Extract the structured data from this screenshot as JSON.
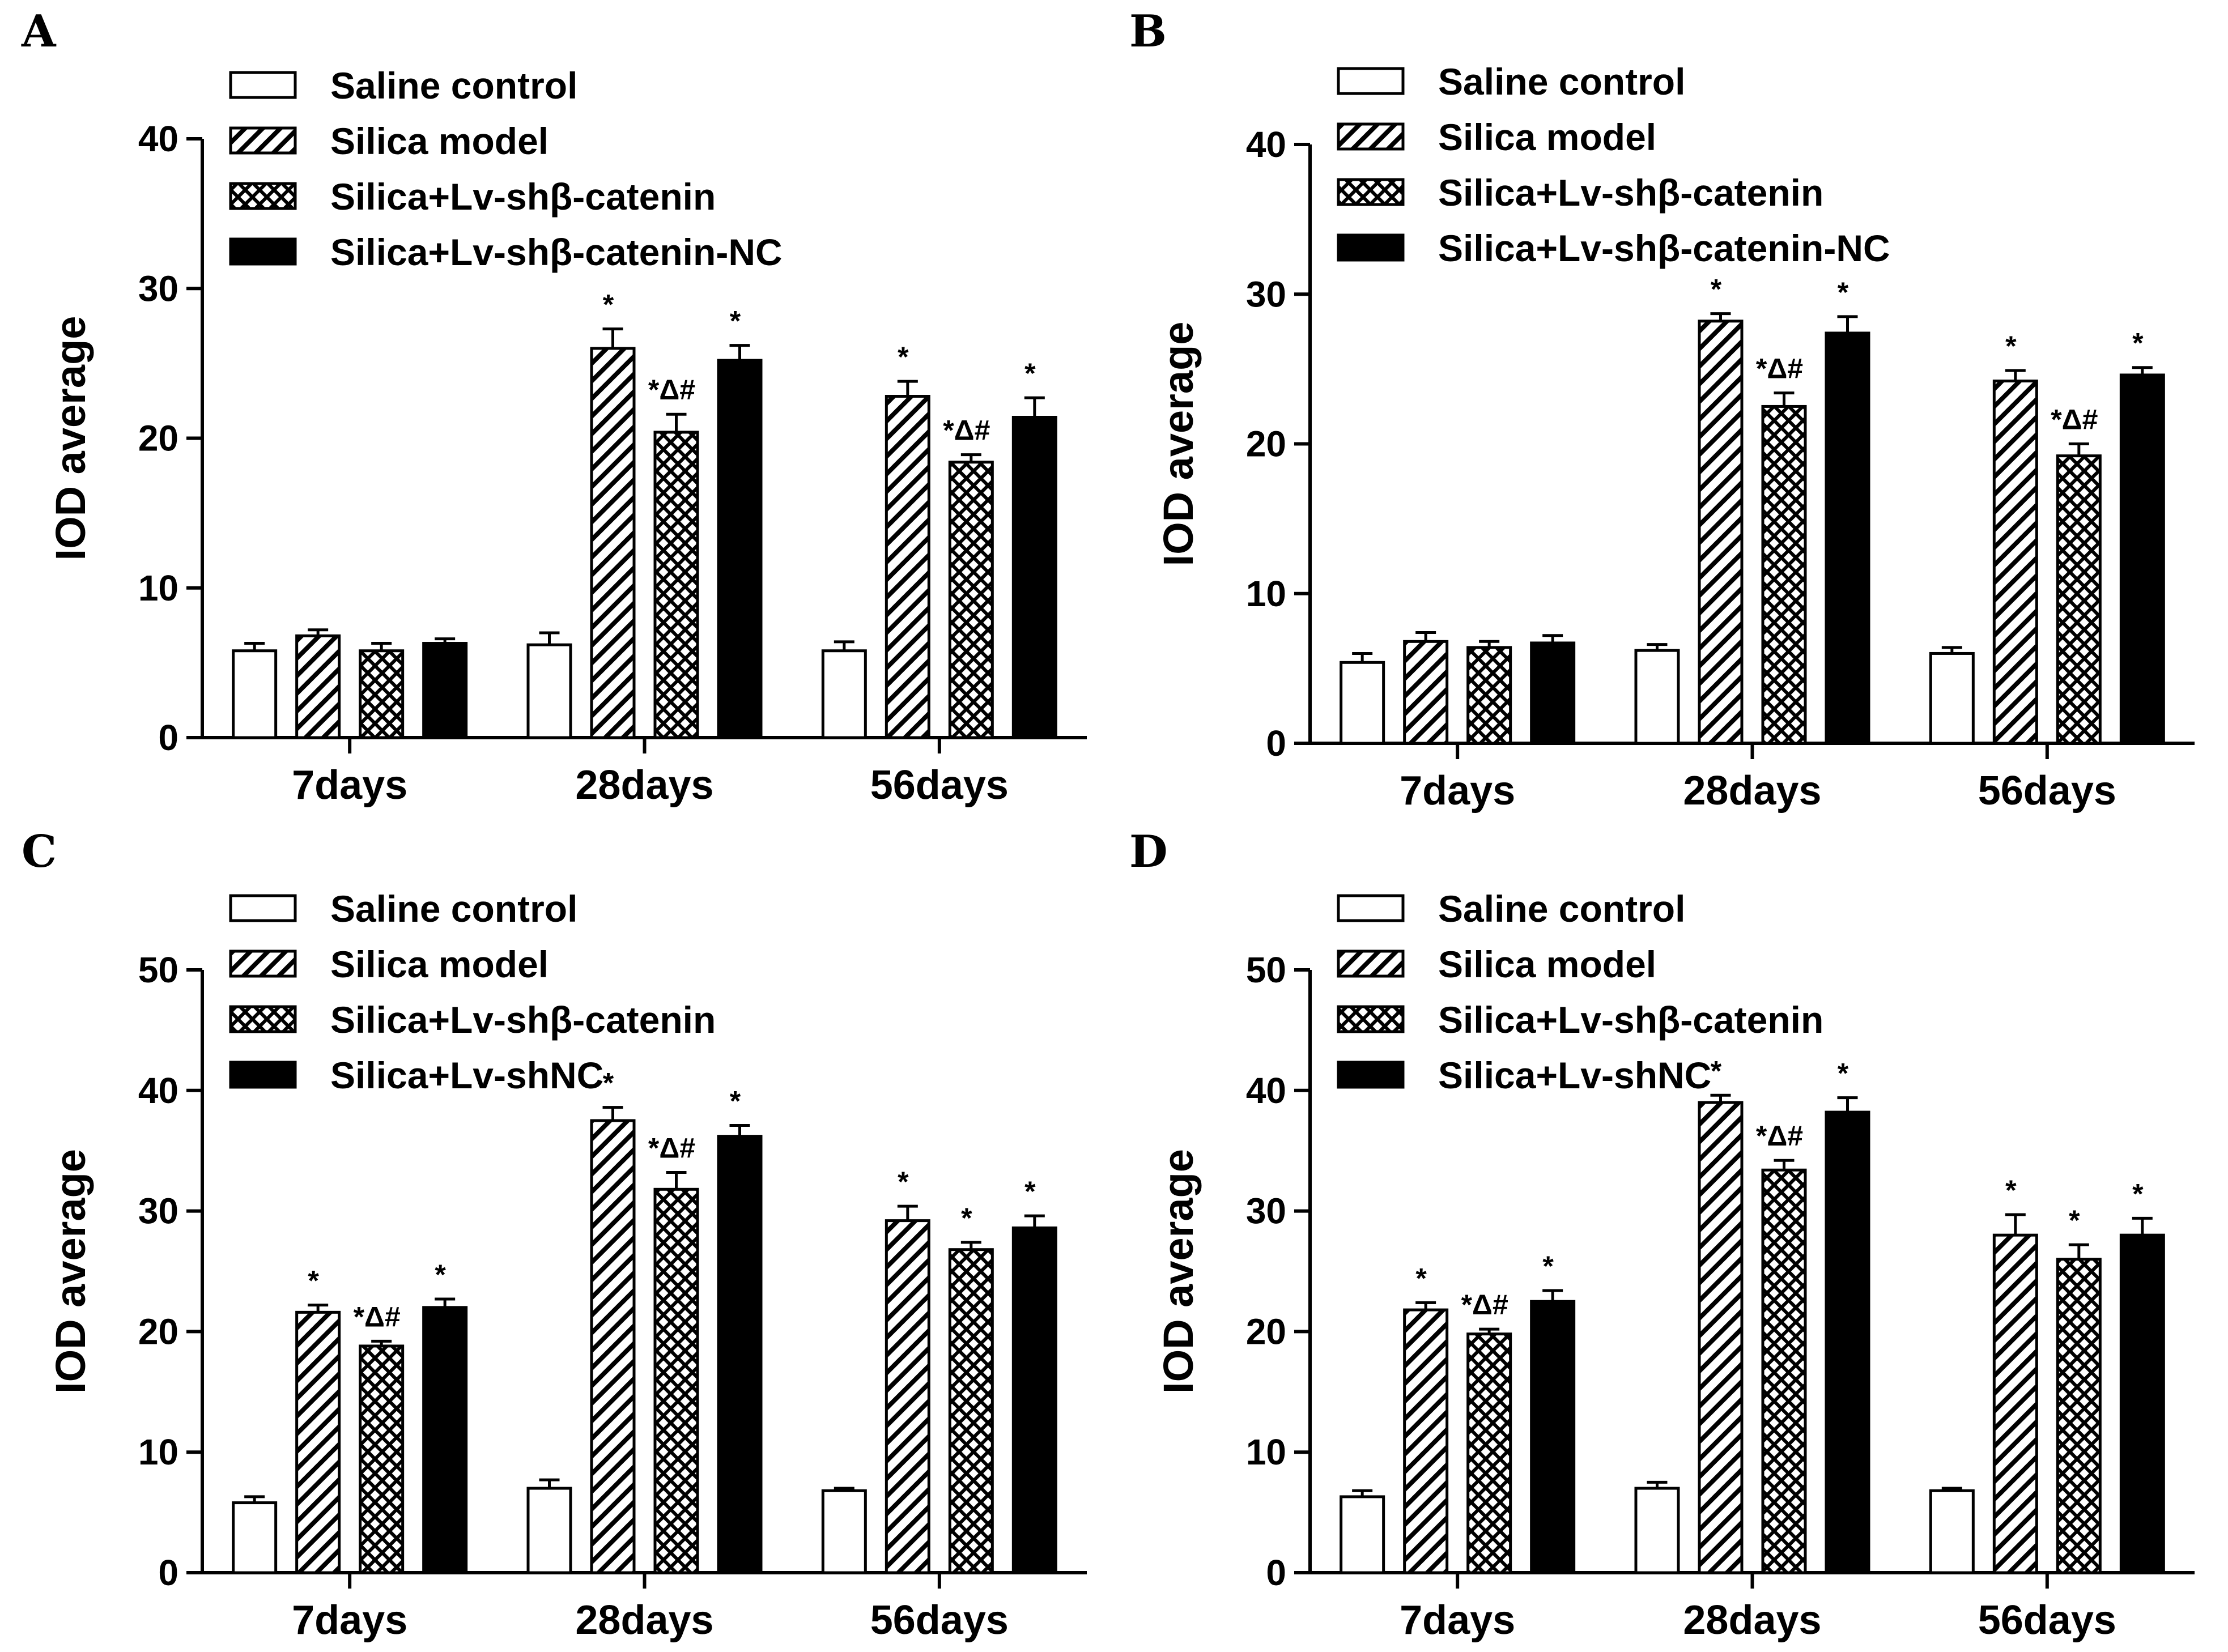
{
  "figure": {
    "colors": {
      "ink": "#000000",
      "background": "#ffffff",
      "bar_solid": "#000000",
      "bar_open": "#ffffff"
    }
  },
  "chart_data": [
    {
      "panel": "A",
      "type": "bar",
      "ylabel": "IOD average",
      "xlabel": "",
      "ylim": [
        0,
        40
      ],
      "yticks": [
        0,
        10,
        20,
        30,
        40
      ],
      "categories": [
        "7days",
        "28days",
        "56days"
      ],
      "legend_position": "top-left",
      "series": [
        {
          "name": "Saline control",
          "pattern": "open",
          "values": [
            5.8,
            6.2,
            5.8
          ],
          "errors": [
            0.5,
            0.8,
            0.6
          ],
          "annotations": [
            "",
            "",
            ""
          ]
        },
        {
          "name": "Silica model",
          "pattern": "diagonal-hatch",
          "values": [
            6.8,
            26.0,
            22.8
          ],
          "errors": [
            0.4,
            1.3,
            1.0
          ],
          "annotations": [
            "",
            "*",
            "*"
          ]
        },
        {
          "name": "Silica+Lv-shβ-catenin",
          "pattern": "crosshatch",
          "values": [
            5.8,
            20.4,
            18.4
          ],
          "errors": [
            0.5,
            1.2,
            0.5
          ],
          "annotations": [
            "",
            "*Δ#",
            "*Δ#"
          ]
        },
        {
          "name": "Silica+Lv-shβ-catenin-NC",
          "pattern": "solid",
          "values": [
            6.3,
            25.2,
            21.4
          ],
          "errors": [
            0.3,
            1.0,
            1.3
          ],
          "annotations": [
            "",
            "*",
            "*"
          ]
        }
      ]
    },
    {
      "panel": "B",
      "type": "bar",
      "ylabel": "IOD average",
      "xlabel": "",
      "ylim": [
        0,
        40
      ],
      "yticks": [
        0,
        10,
        20,
        30,
        40
      ],
      "categories": [
        "7days",
        "28days",
        "56days"
      ],
      "legend_position": "top-left",
      "series": [
        {
          "name": "Saline control",
          "pattern": "open",
          "values": [
            5.4,
            6.2,
            6.0
          ],
          "errors": [
            0.6,
            0.4,
            0.4
          ],
          "annotations": [
            "",
            "",
            ""
          ]
        },
        {
          "name": "Silica model",
          "pattern": "diagonal-hatch",
          "values": [
            6.8,
            28.2,
            24.2
          ],
          "errors": [
            0.6,
            0.5,
            0.7
          ],
          "annotations": [
            "",
            "*",
            "*"
          ]
        },
        {
          "name": "Silica+Lv-shβ-catenin",
          "pattern": "crosshatch",
          "values": [
            6.4,
            22.5,
            19.2
          ],
          "errors": [
            0.4,
            0.9,
            0.8
          ],
          "annotations": [
            "",
            "*Δ#",
            "*Δ#"
          ]
        },
        {
          "name": "Silica+Lv-shβ-catenin-NC",
          "pattern": "solid",
          "values": [
            6.7,
            27.4,
            24.6
          ],
          "errors": [
            0.5,
            1.1,
            0.5
          ],
          "annotations": [
            "",
            "*",
            "*"
          ]
        }
      ]
    },
    {
      "panel": "C",
      "type": "bar",
      "ylabel": "IOD average",
      "xlabel": "",
      "ylim": [
        0,
        50
      ],
      "yticks": [
        0,
        10,
        20,
        30,
        40,
        50
      ],
      "categories": [
        "7days",
        "28days",
        "56days"
      ],
      "legend_position": "top-left",
      "series": [
        {
          "name": "Saline control",
          "pattern": "open",
          "values": [
            5.8,
            7.0,
            6.8
          ],
          "errors": [
            0.5,
            0.7,
            0.2
          ],
          "annotations": [
            "",
            "",
            ""
          ]
        },
        {
          "name": "Silica model",
          "pattern": "diagonal-hatch",
          "values": [
            21.6,
            37.5,
            29.2
          ],
          "errors": [
            0.6,
            1.1,
            1.2
          ],
          "annotations": [
            "*",
            "*",
            "*"
          ]
        },
        {
          "name": "Silica+Lv-shβ-catenin",
          "pattern": "crosshatch",
          "values": [
            18.8,
            31.8,
            26.8
          ],
          "errors": [
            0.4,
            1.4,
            0.6
          ],
          "annotations": [
            "*Δ#",
            "*Δ#",
            "*"
          ]
        },
        {
          "name": "Silica+Lv-shNC",
          "pattern": "solid",
          "values": [
            22.0,
            36.2,
            28.6
          ],
          "errors": [
            0.7,
            0.9,
            1.0
          ],
          "annotations": [
            "*",
            "*",
            "*"
          ]
        }
      ]
    },
    {
      "panel": "D",
      "type": "bar",
      "ylabel": "IOD average",
      "xlabel": "",
      "ylim": [
        0,
        50
      ],
      "yticks": [
        0,
        10,
        20,
        30,
        40,
        50
      ],
      "categories": [
        "7days",
        "28days",
        "56days"
      ],
      "legend_position": "top-left",
      "series": [
        {
          "name": "Saline control",
          "pattern": "open",
          "values": [
            6.3,
            7.0,
            6.8
          ],
          "errors": [
            0.5,
            0.5,
            0.2
          ],
          "annotations": [
            "",
            "",
            ""
          ]
        },
        {
          "name": "Silica model",
          "pattern": "diagonal-hatch",
          "values": [
            21.8,
            39.0,
            28.0
          ],
          "errors": [
            0.6,
            0.6,
            1.7
          ],
          "annotations": [
            "*",
            "*",
            "*"
          ]
        },
        {
          "name": "Silica+Lv-shβ-catenin",
          "pattern": "crosshatch",
          "values": [
            19.8,
            33.4,
            26.0
          ],
          "errors": [
            0.4,
            0.8,
            1.2
          ],
          "annotations": [
            "*Δ#",
            "*Δ#",
            "*"
          ]
        },
        {
          "name": "Silica+Lv-shNC",
          "pattern": "solid",
          "values": [
            22.5,
            38.2,
            28.0
          ],
          "errors": [
            0.9,
            1.2,
            1.4
          ],
          "annotations": [
            "*",
            "*",
            "*"
          ]
        }
      ]
    }
  ]
}
